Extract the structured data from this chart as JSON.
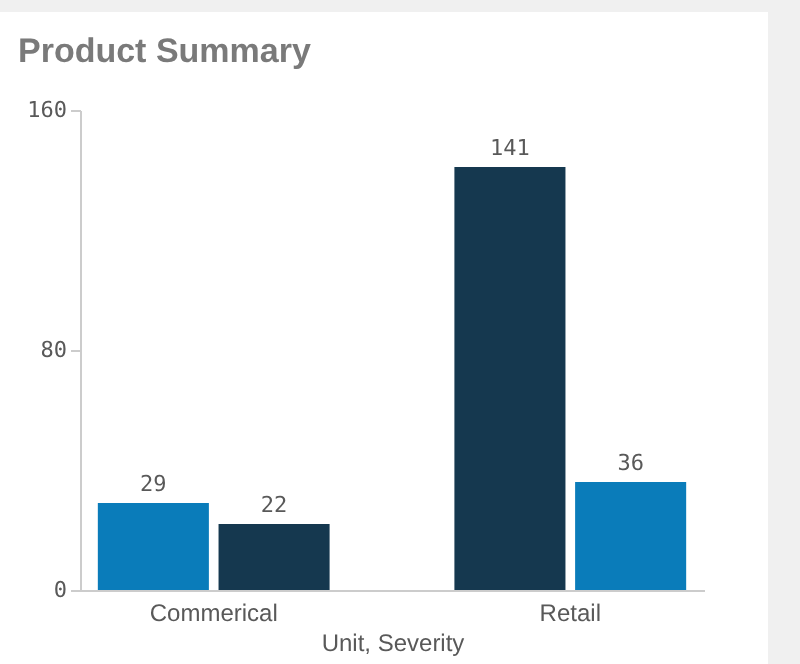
{
  "chart_data": {
    "type": "bar",
    "title": "Product Summary",
    "xlabel": "Unit, Severity",
    "categories": [
      "Commerical",
      "Retail"
    ],
    "series": [
      {
        "colors": [
          "#0a7cba",
          "#15384f"
        ],
        "values": [
          29,
          141
        ]
      },
      {
        "colors": [
          "#15384f",
          "#0a7cba"
        ],
        "values": [
          22,
          36
        ]
      }
    ],
    "ylim": [
      0,
      160
    ],
    "yticks": [
      0,
      80,
      160
    ],
    "grid": false,
    "data_labels": true
  }
}
